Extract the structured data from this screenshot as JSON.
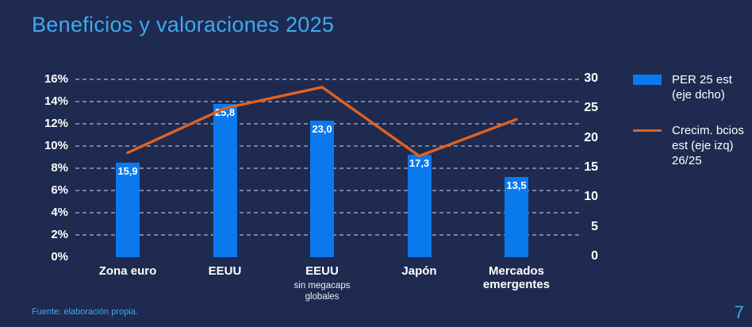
{
  "chart_data": {
    "type": "combo (bar + line)",
    "title": "Beneficios y valoraciones 2025",
    "categories": [
      "Zona euro",
      "EEUU",
      "EEUU",
      "Japón",
      "Mercados emergentes"
    ],
    "category_sublabels": [
      "",
      "",
      "sin megacaps globales",
      "",
      ""
    ],
    "series": [
      {
        "name": "PER 25 est (eje dcho)",
        "type": "bar",
        "axis": "right",
        "color": "#0B79EE",
        "values": [
          15.9,
          25.8,
          23.0,
          17.3,
          13.5
        ],
        "value_labels": [
          "15,9",
          "25,8",
          "23,0",
          "17,3",
          "13,5"
        ]
      },
      {
        "name": "Crecim. bcios est (eje izq) 26/25",
        "type": "line",
        "axis": "left",
        "color": "#E0621F",
        "values": [
          9.4,
          13.4,
          15.3,
          9.1,
          12.4
        ],
        "note": "line has no printed data labels; values in % estimated from plot position"
      }
    ],
    "left_axis": {
      "unit": "%",
      "min": 0,
      "max": 16,
      "tick_step": 2,
      "ticks": [
        "16%",
        "14%",
        "12%",
        "10%",
        "8%",
        "6%",
        "4%",
        "2%",
        "0%"
      ]
    },
    "right_axis": {
      "min": 0,
      "max": 30,
      "tick_step": 5,
      "ticks": [
        "30",
        "25",
        "20",
        "15",
        "10",
        "5",
        "0"
      ]
    },
    "grid": "horizontal dashed, no 0% baseline",
    "legend_position": "right"
  },
  "legend": {
    "items": [
      {
        "swatch": "bar-blue",
        "label": "PER 25 est\n(eje dcho)"
      },
      {
        "swatch": "line-orange",
        "label": "Crecim. bcios\nest (eje izq)\n26/25"
      }
    ]
  },
  "footer": {
    "source": "Fuente: elaboración propia.",
    "page_number": "7"
  },
  "colors": {
    "background": "#1E2A50",
    "title_blue": "#3FA9F0",
    "bar_blue": "#0B79EE",
    "line_orange": "#E0621F",
    "axis_text": "#FFFFFF",
    "gridline": "rgba(193,203,224,0.55)"
  }
}
